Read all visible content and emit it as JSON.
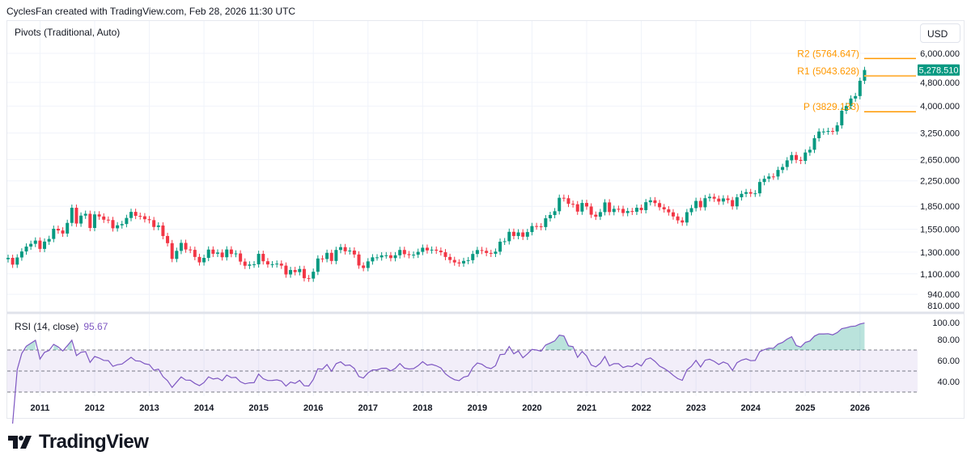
{
  "header": {
    "text": "CyclesFan created with TradingView.com, Feb 28, 2026 11:30 UTC"
  },
  "legend": {
    "pivots": "Pivots (Traditional, Auto)",
    "rsi_label": "RSI (14, close)",
    "rsi_value": "95.67"
  },
  "currency_button": "USD",
  "branding": {
    "logo_text": "TradingView"
  },
  "colors": {
    "up": "#089981",
    "down": "#f23645",
    "rsi": "#7e57c2",
    "pivot": "#ff9800",
    "pivot_r1": "#ffb74d"
  },
  "chart_data": [
    {
      "type": "candlestick",
      "interval": "monthly",
      "scale": "log",
      "start_month": "2010-06",
      "end_month": "2026-02",
      "x_ticks": [
        "2011",
        "2012",
        "2013",
        "2014",
        "2015",
        "2016",
        "2017",
        "2018",
        "2019",
        "2020",
        "2021",
        "2022",
        "2023",
        "2024",
        "2025",
        "2026"
      ],
      "y_ticks": [
        "6,000.000",
        "4,800.000",
        "4,000.000",
        "3,250.000",
        "2,650.000",
        "2,250.000",
        "1,850.000",
        "1,550.000",
        "1,300.000",
        "1,100.000",
        "940.000",
        "810.000"
      ],
      "y_tick_values": [
        6000,
        4800,
        4000,
        3250,
        2650,
        2250,
        1850,
        1550,
        1300,
        1100,
        940,
        810
      ],
      "ylim": [
        790,
        6300
      ],
      "last_price": "5,278.510",
      "pivots": [
        {
          "label": "R2 (5764.647)",
          "value": 5764.647
        },
        {
          "label": "R1 (5043.628)",
          "value": 5043.628
        },
        {
          "label": "P (3829.133)",
          "value": 3829.133
        }
      ],
      "close": [
        1244,
        1181,
        1248,
        1307,
        1357,
        1386,
        1421,
        1333,
        1410,
        1439,
        1556,
        1536,
        1500,
        1628,
        1829,
        1620,
        1722,
        1746,
        1566,
        1738,
        1710,
        1669,
        1664,
        1562,
        1598,
        1614,
        1691,
        1772,
        1719,
        1713,
        1675,
        1663,
        1578,
        1596,
        1472,
        1393,
        1234,
        1313,
        1396,
        1327,
        1323,
        1253,
        1202,
        1244,
        1326,
        1284,
        1296,
        1250,
        1327,
        1282,
        1287,
        1209,
        1171,
        1182,
        1184,
        1283,
        1212,
        1183,
        1184,
        1190,
        1172,
        1095,
        1133,
        1115,
        1142,
        1064,
        1061,
        1118,
        1238,
        1233,
        1293,
        1215,
        1322,
        1351,
        1309,
        1316,
        1277,
        1173,
        1151,
        1211,
        1249,
        1249,
        1268,
        1269,
        1242,
        1269,
        1322,
        1280,
        1271,
        1275,
        1303,
        1345,
        1318,
        1325,
        1315,
        1299,
        1253,
        1224,
        1201,
        1192,
        1215,
        1222,
        1282,
        1321,
        1313,
        1292,
        1284,
        1305,
        1409,
        1414,
        1520,
        1472,
        1513,
        1464,
        1517,
        1589,
        1585,
        1577,
        1687,
        1730,
        1781,
        1975,
        1968,
        1886,
        1879,
        1776,
        1898,
        1847,
        1734,
        1708,
        1769,
        1906,
        1770,
        1814,
        1813,
        1757,
        1783,
        1774,
        1829,
        1796,
        1909,
        1937,
        1896,
        1837,
        1807,
        1766,
        1711,
        1660,
        1633,
        1768,
        1824,
        1928,
        1836,
        1969,
        1990,
        1962,
        1919,
        1965,
        1940,
        1849,
        1983,
        2036,
        2063,
        2039,
        2044,
        2230,
        2286,
        2327,
        2326,
        2447,
        2503,
        2634,
        2744,
        2643,
        2624,
        2798,
        2858,
        3123,
        3288,
        3289,
        3303,
        3290,
        3448,
        3858,
        4002,
        4239,
        4320,
        4860,
        5278.51
      ]
    },
    {
      "type": "line",
      "name": "RSI (14, close)",
      "ylim": [
        25,
        100
      ],
      "y_ticks": [
        "100.00",
        "80.00",
        "60.00",
        "40.00"
      ],
      "y_tick_values": [
        100,
        80,
        60,
        40
      ],
      "bands": [
        70,
        50,
        30
      ],
      "last_value": 95.67
    }
  ]
}
